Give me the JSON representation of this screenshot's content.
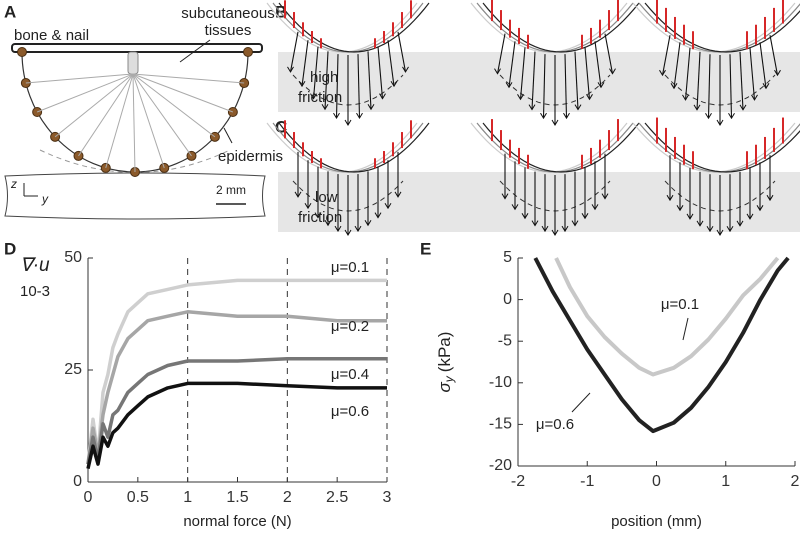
{
  "panel_labels": [
    "A",
    "B",
    "C",
    "D",
    "E"
  ],
  "diagram_a": {
    "bone": "bone & nail",
    "tissue_line1": "subcutaneous",
    "tissue_line2": "tissues",
    "epidermis": "epidermis",
    "axis_z": "z",
    "axis_y": "y",
    "scale": "2 mm"
  },
  "diagram_b": {
    "line1": "high",
    "line2": "friction"
  },
  "diagram_c": {
    "line1": "low",
    "line2": "friction"
  },
  "chart_data": [
    {
      "type": "line",
      "ylabel": "∇·u",
      "ylabel_scale": "10-3",
      "xlabel": "normal force (N)",
      "x": [
        0,
        0.05,
        0.1,
        0.15,
        0.2,
        0.25,
        0.3,
        0.4,
        0.5,
        0.6,
        0.8,
        1,
        1.5,
        2,
        2.5,
        3
      ],
      "series": [
        {
          "name": "μ=0.1",
          "color": "#cfcfcf",
          "values": [
            4,
            14,
            6,
            20,
            24,
            30,
            33,
            38,
            40,
            42,
            43,
            44,
            45,
            45,
            45,
            45
          ]
        },
        {
          "name": "μ=0.2",
          "color": "#a6a6a6",
          "values": [
            4,
            12,
            6,
            15,
            20,
            24,
            28,
            32,
            34,
            36,
            37,
            38,
            37,
            37,
            36,
            36
          ]
        },
        {
          "name": "μ=0.4",
          "color": "#767676",
          "values": [
            4,
            10,
            5,
            13,
            10,
            15,
            16,
            20,
            22,
            24,
            26,
            27,
            27,
            27.5,
            27.5,
            27.5
          ]
        },
        {
          "name": "μ=0.6",
          "color": "#111111",
          "values": [
            3,
            8,
            4,
            10,
            8,
            11,
            12,
            15,
            17,
            19,
            21,
            22,
            22,
            21.5,
            21,
            21
          ]
        }
      ],
      "xlim": [
        0,
        3
      ],
      "ylim": [
        0,
        50
      ],
      "xticks": [
        0,
        0.5,
        1,
        1.5,
        2,
        2.5,
        3
      ],
      "yticks": [
        0,
        25,
        50
      ],
      "vlines": [
        1,
        2,
        3
      ]
    },
    {
      "type": "line",
      "ylabel": "σ",
      "ylabel_sub": "y",
      "ylabel_unit": "(kPa)",
      "xlabel": "position (mm)",
      "series": [
        {
          "name": "μ=0.1",
          "color": "#c8c8c8",
          "x": [
            -1.45,
            -1.25,
            -1,
            -0.75,
            -0.5,
            -0.25,
            -0.05,
            0.25,
            0.5,
            0.75,
            1,
            1.25,
            1.5,
            1.75
          ],
          "values": [
            5,
            1.5,
            -2,
            -4.5,
            -6.5,
            -8.2,
            -9,
            -8.2,
            -6.8,
            -4.8,
            -2.3,
            0.5,
            2.5,
            5
          ]
        },
        {
          "name": "μ=0.6",
          "color": "#222222",
          "x": [
            -1.75,
            -1.5,
            -1.25,
            -1,
            -0.75,
            -0.5,
            -0.25,
            -0.05,
            0.25,
            0.5,
            0.75,
            1,
            1.25,
            1.5,
            1.75,
            1.9
          ],
          "values": [
            5,
            1,
            -2.5,
            -6,
            -9,
            -12,
            -14.5,
            -15.8,
            -14.8,
            -13,
            -10.5,
            -7.5,
            -4,
            0,
            3.5,
            5
          ]
        }
      ],
      "xlim": [
        -2,
        2
      ],
      "ylim": [
        -20,
        5
      ],
      "xticks": [
        -2,
        -1,
        0,
        1,
        2
      ],
      "yticks": [
        5,
        0,
        -5,
        -10,
        -15,
        -20
      ]
    }
  ]
}
